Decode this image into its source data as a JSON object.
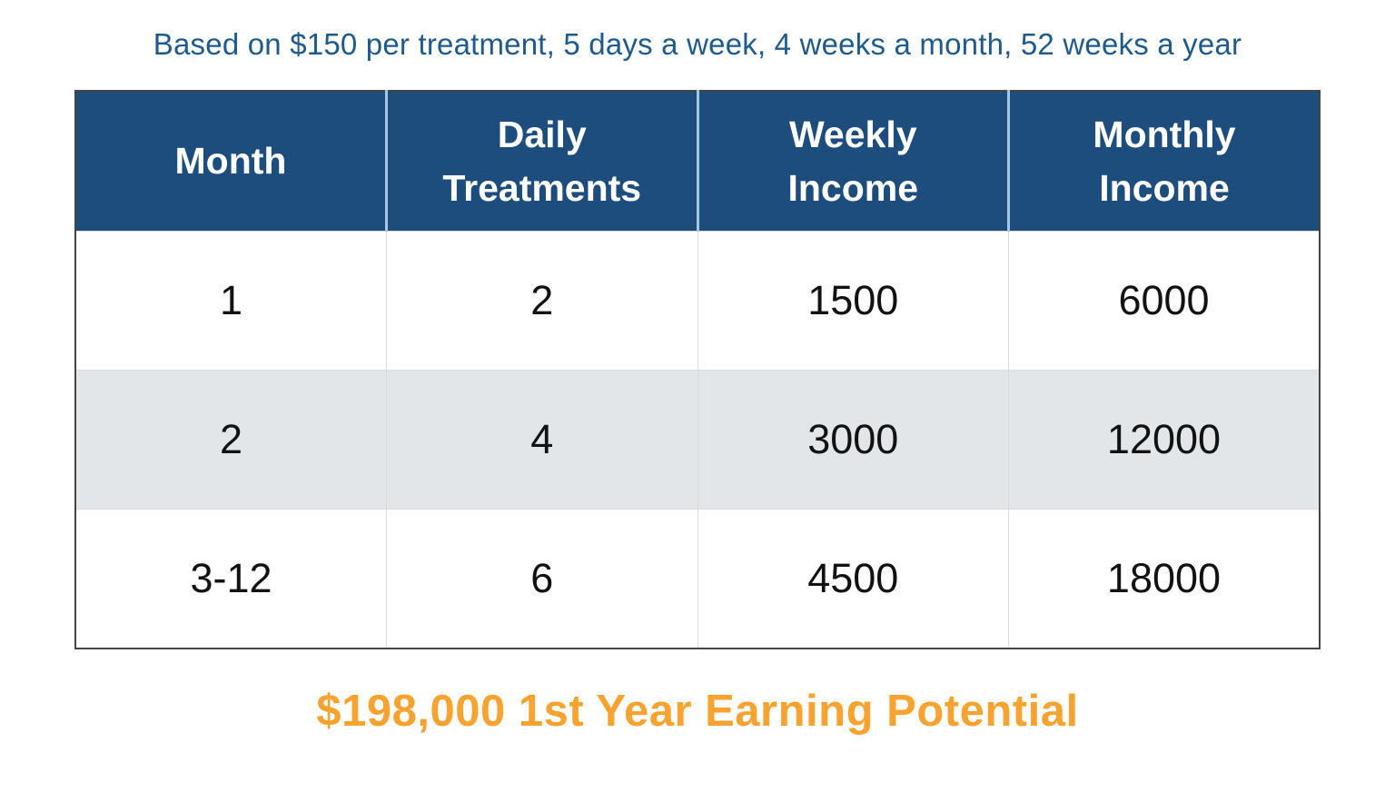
{
  "caption": "Based on $150 per treatment, 5 days a week, 4 weeks a month, 52 weeks a year",
  "table": {
    "columns": [
      "Month",
      "Daily Treatments",
      "Weekly Income",
      "Monthly Income"
    ],
    "rows": [
      [
        "1",
        "2",
        "1500",
        "6000"
      ],
      [
        "2",
        "4",
        "3000",
        "12000"
      ],
      [
        "3-12",
        "6",
        "4500",
        "18000"
      ]
    ]
  },
  "footer": "$198,000 1st Year Earning Potential",
  "colors": {
    "header_bg": "#1d4d7c",
    "header_text": "#ffffff",
    "caption_text": "#1e5b8c",
    "footer_text": "#f8a230",
    "alt_row_bg": "#e3e6e9",
    "outer_border": "#454545",
    "header_divider": "#a6c6e1",
    "body_divider": "#d9dbdd"
  },
  "chart_data": {
    "type": "table",
    "title": "Based on $150 per treatment, 5 days a week, 4 weeks a month, 52 weeks a year",
    "columns": [
      "Month",
      "Daily Treatments",
      "Weekly Income",
      "Monthly Income"
    ],
    "rows": [
      [
        "1",
        "2",
        "1500",
        "6000"
      ],
      [
        "2",
        "4",
        "3000",
        "12000"
      ],
      [
        "3-12",
        "6",
        "4500",
        "18000"
      ]
    ],
    "annotation": "$198,000 1st Year Earning Potential",
    "layout": {
      "header_style": "dark-blue with white bold text",
      "row_striping": "white / light-gray alternating",
      "alignment": "center"
    }
  }
}
